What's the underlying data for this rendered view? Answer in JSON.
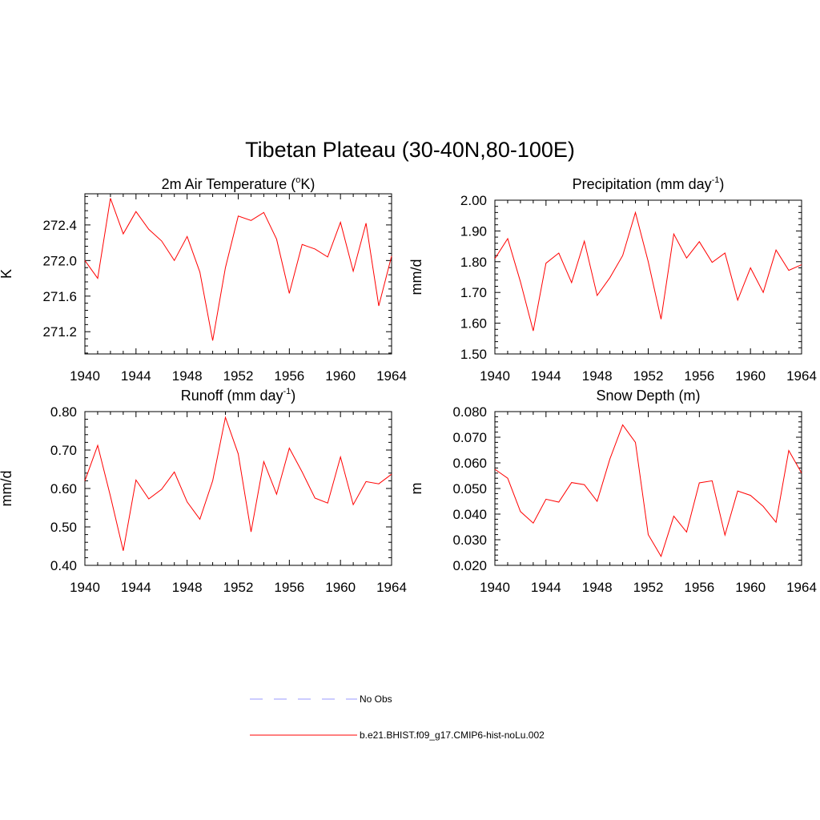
{
  "title": "Tibetan Plateau (30-40N,80-100E)",
  "colors": {
    "model": "#ff0000",
    "obs": "#9999ff",
    "axis": "#000000"
  },
  "legend": {
    "entries": [
      {
        "name": "No Obs",
        "style": "dashed",
        "color": "#9999ff"
      },
      {
        "name": "b.e21.BHIST.f09_g17.CMIP6-hist-noLu.002",
        "style": "solid",
        "color": "#ff0000"
      }
    ]
  },
  "chart_data": [
    {
      "type": "line",
      "title": "2m Air Temperature (°K)",
      "title_parts": [
        "2m Air Temperature (",
        "o",
        "K)"
      ],
      "ylabel": "K",
      "xlim": [
        1940,
        1964
      ],
      "ylim": [
        270.95,
        272.75
      ],
      "xticks": [
        1940,
        1944,
        1948,
        1952,
        1956,
        1960,
        1964
      ],
      "yticks": [
        271.2,
        271.6,
        272.0,
        272.4
      ],
      "ytick_labels": [
        "271.2",
        "271.6",
        "272.0",
        "272.4"
      ],
      "x": [
        1940,
        1941,
        1942,
        1943,
        1944,
        1945,
        1946,
        1947,
        1948,
        1949,
        1950,
        1951,
        1952,
        1953,
        1954,
        1955,
        1956,
        1957,
        1958,
        1959,
        1960,
        1961,
        1962,
        1963,
        1964
      ],
      "series": [
        {
          "name": "b.e21.BHIST.f09_g17.CMIP6-hist-noLu.002",
          "values": [
            272.0,
            271.8,
            272.7,
            272.3,
            272.55,
            272.35,
            272.22,
            272.0,
            272.27,
            271.87,
            271.1,
            271.92,
            272.5,
            272.45,
            272.54,
            272.24,
            271.63,
            272.18,
            272.13,
            272.04,
            272.43,
            271.88,
            272.42,
            271.49,
            272.05
          ]
        }
      ]
    },
    {
      "type": "line",
      "title": "Precipitation (mm day-1)",
      "title_parts": [
        "Precipitation (mm day",
        "-1",
        ")"
      ],
      "ylabel": "mm/d",
      "xlim": [
        1940,
        1964
      ],
      "ylim": [
        1.5,
        2.0
      ],
      "xticks": [
        1940,
        1944,
        1948,
        1952,
        1956,
        1960,
        1964
      ],
      "yticks": [
        1.5,
        1.6,
        1.7,
        1.8,
        1.9,
        2.0
      ],
      "ytick_labels": [
        "1.50",
        "1.60",
        "1.70",
        "1.80",
        "1.90",
        "2.00"
      ],
      "x": [
        1940,
        1941,
        1942,
        1943,
        1944,
        1945,
        1946,
        1947,
        1948,
        1949,
        1950,
        1951,
        1952,
        1953,
        1954,
        1955,
        1956,
        1957,
        1958,
        1959,
        1960,
        1961,
        1962,
        1963,
        1964
      ],
      "series": [
        {
          "name": "b.e21.BHIST.f09_g17.CMIP6-hist-noLu.002",
          "values": [
            1.81,
            1.875,
            1.735,
            1.575,
            1.795,
            1.828,
            1.732,
            1.867,
            1.69,
            1.748,
            1.82,
            1.96,
            1.8,
            1.613,
            1.89,
            1.812,
            1.865,
            1.798,
            1.828,
            1.675,
            1.78,
            1.7,
            1.838,
            1.772,
            1.79
          ]
        }
      ]
    },
    {
      "type": "line",
      "title": "Runoff (mm day-1)",
      "title_parts": [
        "Runoff (mm day",
        "-1",
        ")"
      ],
      "ylabel": "mm/d",
      "xlim": [
        1940,
        1964
      ],
      "ylim": [
        0.4,
        0.8
      ],
      "xticks": [
        1940,
        1944,
        1948,
        1952,
        1956,
        1960,
        1964
      ],
      "yticks": [
        0.4,
        0.5,
        0.6,
        0.7,
        0.8
      ],
      "ytick_labels": [
        "0.40",
        "0.50",
        "0.60",
        "0.70",
        "0.80"
      ],
      "x": [
        1940,
        1941,
        1942,
        1943,
        1944,
        1945,
        1946,
        1947,
        1948,
        1949,
        1950,
        1951,
        1952,
        1953,
        1954,
        1955,
        1956,
        1957,
        1958,
        1959,
        1960,
        1961,
        1962,
        1963,
        1964
      ],
      "series": [
        {
          "name": "b.e21.BHIST.f09_g17.CMIP6-hist-noLu.002",
          "values": [
            0.62,
            0.712,
            0.58,
            0.438,
            0.622,
            0.573,
            0.598,
            0.643,
            0.565,
            0.52,
            0.62,
            0.785,
            0.69,
            0.487,
            0.67,
            0.585,
            0.705,
            0.643,
            0.575,
            0.562,
            0.682,
            0.558,
            0.618,
            0.612,
            0.637
          ]
        }
      ]
    },
    {
      "type": "line",
      "title": "Snow Depth (m)",
      "title_parts": [
        "Snow Depth (m)"
      ],
      "ylabel": "m",
      "xlim": [
        1940,
        1964
      ],
      "ylim": [
        0.02,
        0.08
      ],
      "xticks": [
        1940,
        1944,
        1948,
        1952,
        1956,
        1960,
        1964
      ],
      "yticks": [
        0.02,
        0.03,
        0.04,
        0.05,
        0.06,
        0.07,
        0.08
      ],
      "ytick_labels": [
        "0.020",
        "0.030",
        "0.040",
        "0.050",
        "0.060",
        "0.070",
        "0.080"
      ],
      "x": [
        1940,
        1941,
        1942,
        1943,
        1944,
        1945,
        1946,
        1947,
        1948,
        1949,
        1950,
        1951,
        1952,
        1953,
        1954,
        1955,
        1956,
        1957,
        1958,
        1959,
        1960,
        1961,
        1962,
        1963,
        1964
      ],
      "series": [
        {
          "name": "b.e21.BHIST.f09_g17.CMIP6-hist-noLu.002",
          "values": [
            0.0575,
            0.054,
            0.041,
            0.0365,
            0.0458,
            0.0447,
            0.0523,
            0.0515,
            0.045,
            0.0615,
            0.0748,
            0.068,
            0.032,
            0.0235,
            0.0392,
            0.033,
            0.0522,
            0.053,
            0.0318,
            0.049,
            0.0473,
            0.043,
            0.0368,
            0.0648,
            0.056
          ]
        }
      ]
    }
  ]
}
